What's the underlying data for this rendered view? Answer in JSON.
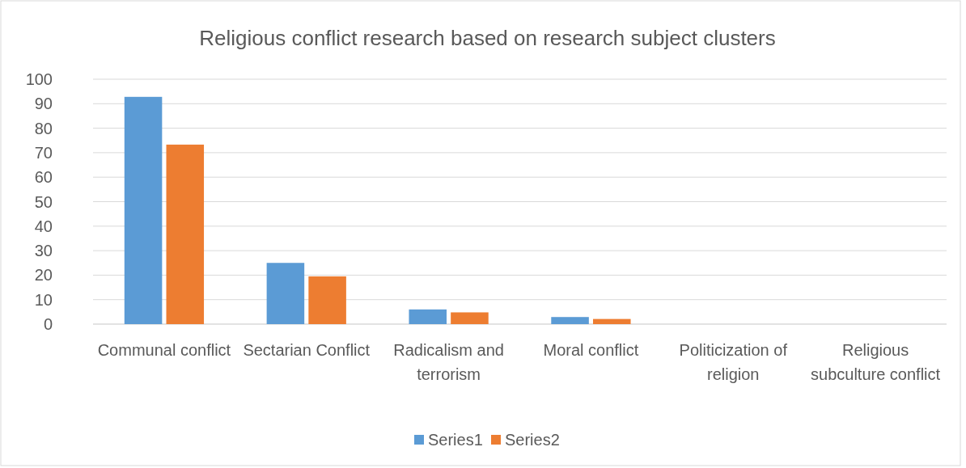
{
  "chart_data": {
    "type": "bar",
    "title": "Religious conflict research based on research subject clusters",
    "categories": [
      "Communal conflict",
      "Sectarian Conflict",
      "Radicalism and terrorism",
      "Moral conflict",
      "Politicization of religion",
      "Religious subculture conflict"
    ],
    "series": [
      {
        "name": "Series1",
        "color": "#5b9bd5",
        "values": [
          92.8,
          25,
          6,
          2.9,
          0,
          0
        ]
      },
      {
        "name": "Series2",
        "color": "#ed7d31",
        "values": [
          73.3,
          19.5,
          4.8,
          2.1,
          0,
          0
        ]
      }
    ],
    "ylim": [
      0,
      100
    ],
    "yticks": [
      0,
      10,
      20,
      30,
      40,
      50,
      60,
      70,
      80,
      90,
      100
    ],
    "grid": "y",
    "legend": "bottom"
  }
}
